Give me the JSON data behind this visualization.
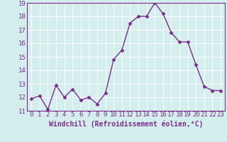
{
  "x": [
    0,
    1,
    2,
    3,
    4,
    5,
    6,
    7,
    8,
    9,
    10,
    11,
    12,
    13,
    14,
    15,
    16,
    17,
    18,
    19,
    20,
    21,
    22,
    23
  ],
  "y": [
    11.9,
    12.1,
    11.1,
    12.9,
    12.0,
    12.6,
    11.8,
    12.0,
    11.5,
    12.3,
    14.8,
    15.5,
    17.5,
    18.0,
    18.0,
    19.0,
    18.2,
    16.8,
    16.1,
    16.1,
    14.4,
    12.8,
    12.5,
    12.5
  ],
  "line_color": "#7B2D8B",
  "marker": "D",
  "marker_size": 2.5,
  "bg_color": "#d4eeee",
  "grid_color": "#ffffff",
  "xlabel": "Windchill (Refroidissement éolien,°C)",
  "ylabel": "",
  "ylim": [
    11,
    19
  ],
  "xlim": [
    -0.5,
    23.5
  ],
  "yticks": [
    11,
    12,
    13,
    14,
    15,
    16,
    17,
    18,
    19
  ],
  "xticks": [
    0,
    1,
    2,
    3,
    4,
    5,
    6,
    7,
    8,
    9,
    10,
    11,
    12,
    13,
    14,
    15,
    16,
    17,
    18,
    19,
    20,
    21,
    22,
    23
  ],
  "tick_label_fontsize": 6.5,
  "xlabel_fontsize": 7.0,
  "line_width": 1.0
}
